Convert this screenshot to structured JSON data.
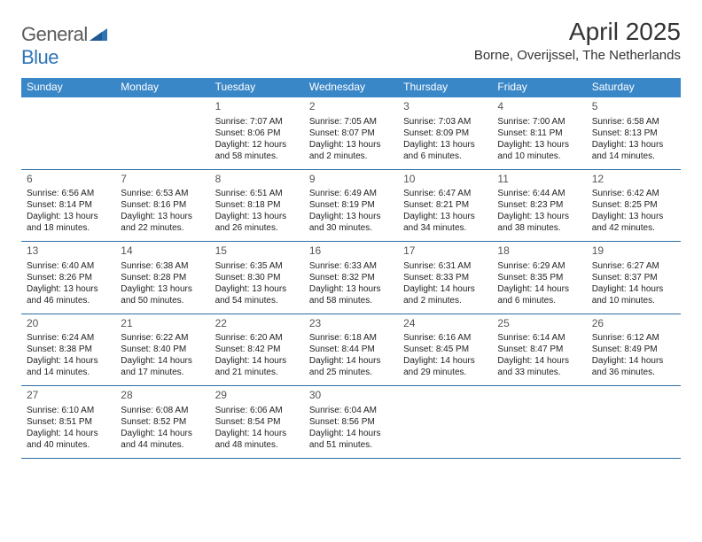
{
  "logo": {
    "text1": "General",
    "text2": "Blue"
  },
  "title": {
    "month": "April 2025",
    "location": "Borne, Overijssel, The Netherlands"
  },
  "colors": {
    "header_bg": "#3a87c8",
    "header_text": "#ffffff",
    "row_border": "#2e6da4",
    "logo_gray": "#5b5b5b",
    "logo_blue": "#2e75b6",
    "text": "#222222",
    "daynum": "#555555",
    "bg": "#ffffff"
  },
  "fonts": {
    "title_size": 28,
    "loc_size": 15,
    "head_size": 12,
    "day_num_size": 12,
    "body_size": 10
  },
  "day_names": [
    "Sunday",
    "Monday",
    "Tuesday",
    "Wednesday",
    "Thursday",
    "Friday",
    "Saturday"
  ],
  "weeks": [
    [
      null,
      null,
      {
        "n": "1",
        "sr": "Sunrise: 7:07 AM",
        "ss": "Sunset: 8:06 PM",
        "d1": "Daylight: 12 hours",
        "d2": "and 58 minutes."
      },
      {
        "n": "2",
        "sr": "Sunrise: 7:05 AM",
        "ss": "Sunset: 8:07 PM",
        "d1": "Daylight: 13 hours",
        "d2": "and 2 minutes."
      },
      {
        "n": "3",
        "sr": "Sunrise: 7:03 AM",
        "ss": "Sunset: 8:09 PM",
        "d1": "Daylight: 13 hours",
        "d2": "and 6 minutes."
      },
      {
        "n": "4",
        "sr": "Sunrise: 7:00 AM",
        "ss": "Sunset: 8:11 PM",
        "d1": "Daylight: 13 hours",
        "d2": "and 10 minutes."
      },
      {
        "n": "5",
        "sr": "Sunrise: 6:58 AM",
        "ss": "Sunset: 8:13 PM",
        "d1": "Daylight: 13 hours",
        "d2": "and 14 minutes."
      }
    ],
    [
      {
        "n": "6",
        "sr": "Sunrise: 6:56 AM",
        "ss": "Sunset: 8:14 PM",
        "d1": "Daylight: 13 hours",
        "d2": "and 18 minutes."
      },
      {
        "n": "7",
        "sr": "Sunrise: 6:53 AM",
        "ss": "Sunset: 8:16 PM",
        "d1": "Daylight: 13 hours",
        "d2": "and 22 minutes."
      },
      {
        "n": "8",
        "sr": "Sunrise: 6:51 AM",
        "ss": "Sunset: 8:18 PM",
        "d1": "Daylight: 13 hours",
        "d2": "and 26 minutes."
      },
      {
        "n": "9",
        "sr": "Sunrise: 6:49 AM",
        "ss": "Sunset: 8:19 PM",
        "d1": "Daylight: 13 hours",
        "d2": "and 30 minutes."
      },
      {
        "n": "10",
        "sr": "Sunrise: 6:47 AM",
        "ss": "Sunset: 8:21 PM",
        "d1": "Daylight: 13 hours",
        "d2": "and 34 minutes."
      },
      {
        "n": "11",
        "sr": "Sunrise: 6:44 AM",
        "ss": "Sunset: 8:23 PM",
        "d1": "Daylight: 13 hours",
        "d2": "and 38 minutes."
      },
      {
        "n": "12",
        "sr": "Sunrise: 6:42 AM",
        "ss": "Sunset: 8:25 PM",
        "d1": "Daylight: 13 hours",
        "d2": "and 42 minutes."
      }
    ],
    [
      {
        "n": "13",
        "sr": "Sunrise: 6:40 AM",
        "ss": "Sunset: 8:26 PM",
        "d1": "Daylight: 13 hours",
        "d2": "and 46 minutes."
      },
      {
        "n": "14",
        "sr": "Sunrise: 6:38 AM",
        "ss": "Sunset: 8:28 PM",
        "d1": "Daylight: 13 hours",
        "d2": "and 50 minutes."
      },
      {
        "n": "15",
        "sr": "Sunrise: 6:35 AM",
        "ss": "Sunset: 8:30 PM",
        "d1": "Daylight: 13 hours",
        "d2": "and 54 minutes."
      },
      {
        "n": "16",
        "sr": "Sunrise: 6:33 AM",
        "ss": "Sunset: 8:32 PM",
        "d1": "Daylight: 13 hours",
        "d2": "and 58 minutes."
      },
      {
        "n": "17",
        "sr": "Sunrise: 6:31 AM",
        "ss": "Sunset: 8:33 PM",
        "d1": "Daylight: 14 hours",
        "d2": "and 2 minutes."
      },
      {
        "n": "18",
        "sr": "Sunrise: 6:29 AM",
        "ss": "Sunset: 8:35 PM",
        "d1": "Daylight: 14 hours",
        "d2": "and 6 minutes."
      },
      {
        "n": "19",
        "sr": "Sunrise: 6:27 AM",
        "ss": "Sunset: 8:37 PM",
        "d1": "Daylight: 14 hours",
        "d2": "and 10 minutes."
      }
    ],
    [
      {
        "n": "20",
        "sr": "Sunrise: 6:24 AM",
        "ss": "Sunset: 8:38 PM",
        "d1": "Daylight: 14 hours",
        "d2": "and 14 minutes."
      },
      {
        "n": "21",
        "sr": "Sunrise: 6:22 AM",
        "ss": "Sunset: 8:40 PM",
        "d1": "Daylight: 14 hours",
        "d2": "and 17 minutes."
      },
      {
        "n": "22",
        "sr": "Sunrise: 6:20 AM",
        "ss": "Sunset: 8:42 PM",
        "d1": "Daylight: 14 hours",
        "d2": "and 21 minutes."
      },
      {
        "n": "23",
        "sr": "Sunrise: 6:18 AM",
        "ss": "Sunset: 8:44 PM",
        "d1": "Daylight: 14 hours",
        "d2": "and 25 minutes."
      },
      {
        "n": "24",
        "sr": "Sunrise: 6:16 AM",
        "ss": "Sunset: 8:45 PM",
        "d1": "Daylight: 14 hours",
        "d2": "and 29 minutes."
      },
      {
        "n": "25",
        "sr": "Sunrise: 6:14 AM",
        "ss": "Sunset: 8:47 PM",
        "d1": "Daylight: 14 hours",
        "d2": "and 33 minutes."
      },
      {
        "n": "26",
        "sr": "Sunrise: 6:12 AM",
        "ss": "Sunset: 8:49 PM",
        "d1": "Daylight: 14 hours",
        "d2": "and 36 minutes."
      }
    ],
    [
      {
        "n": "27",
        "sr": "Sunrise: 6:10 AM",
        "ss": "Sunset: 8:51 PM",
        "d1": "Daylight: 14 hours",
        "d2": "and 40 minutes."
      },
      {
        "n": "28",
        "sr": "Sunrise: 6:08 AM",
        "ss": "Sunset: 8:52 PM",
        "d1": "Daylight: 14 hours",
        "d2": "and 44 minutes."
      },
      {
        "n": "29",
        "sr": "Sunrise: 6:06 AM",
        "ss": "Sunset: 8:54 PM",
        "d1": "Daylight: 14 hours",
        "d2": "and 48 minutes."
      },
      {
        "n": "30",
        "sr": "Sunrise: 6:04 AM",
        "ss": "Sunset: 8:56 PM",
        "d1": "Daylight: 14 hours",
        "d2": "and 51 minutes."
      },
      null,
      null,
      null
    ]
  ]
}
